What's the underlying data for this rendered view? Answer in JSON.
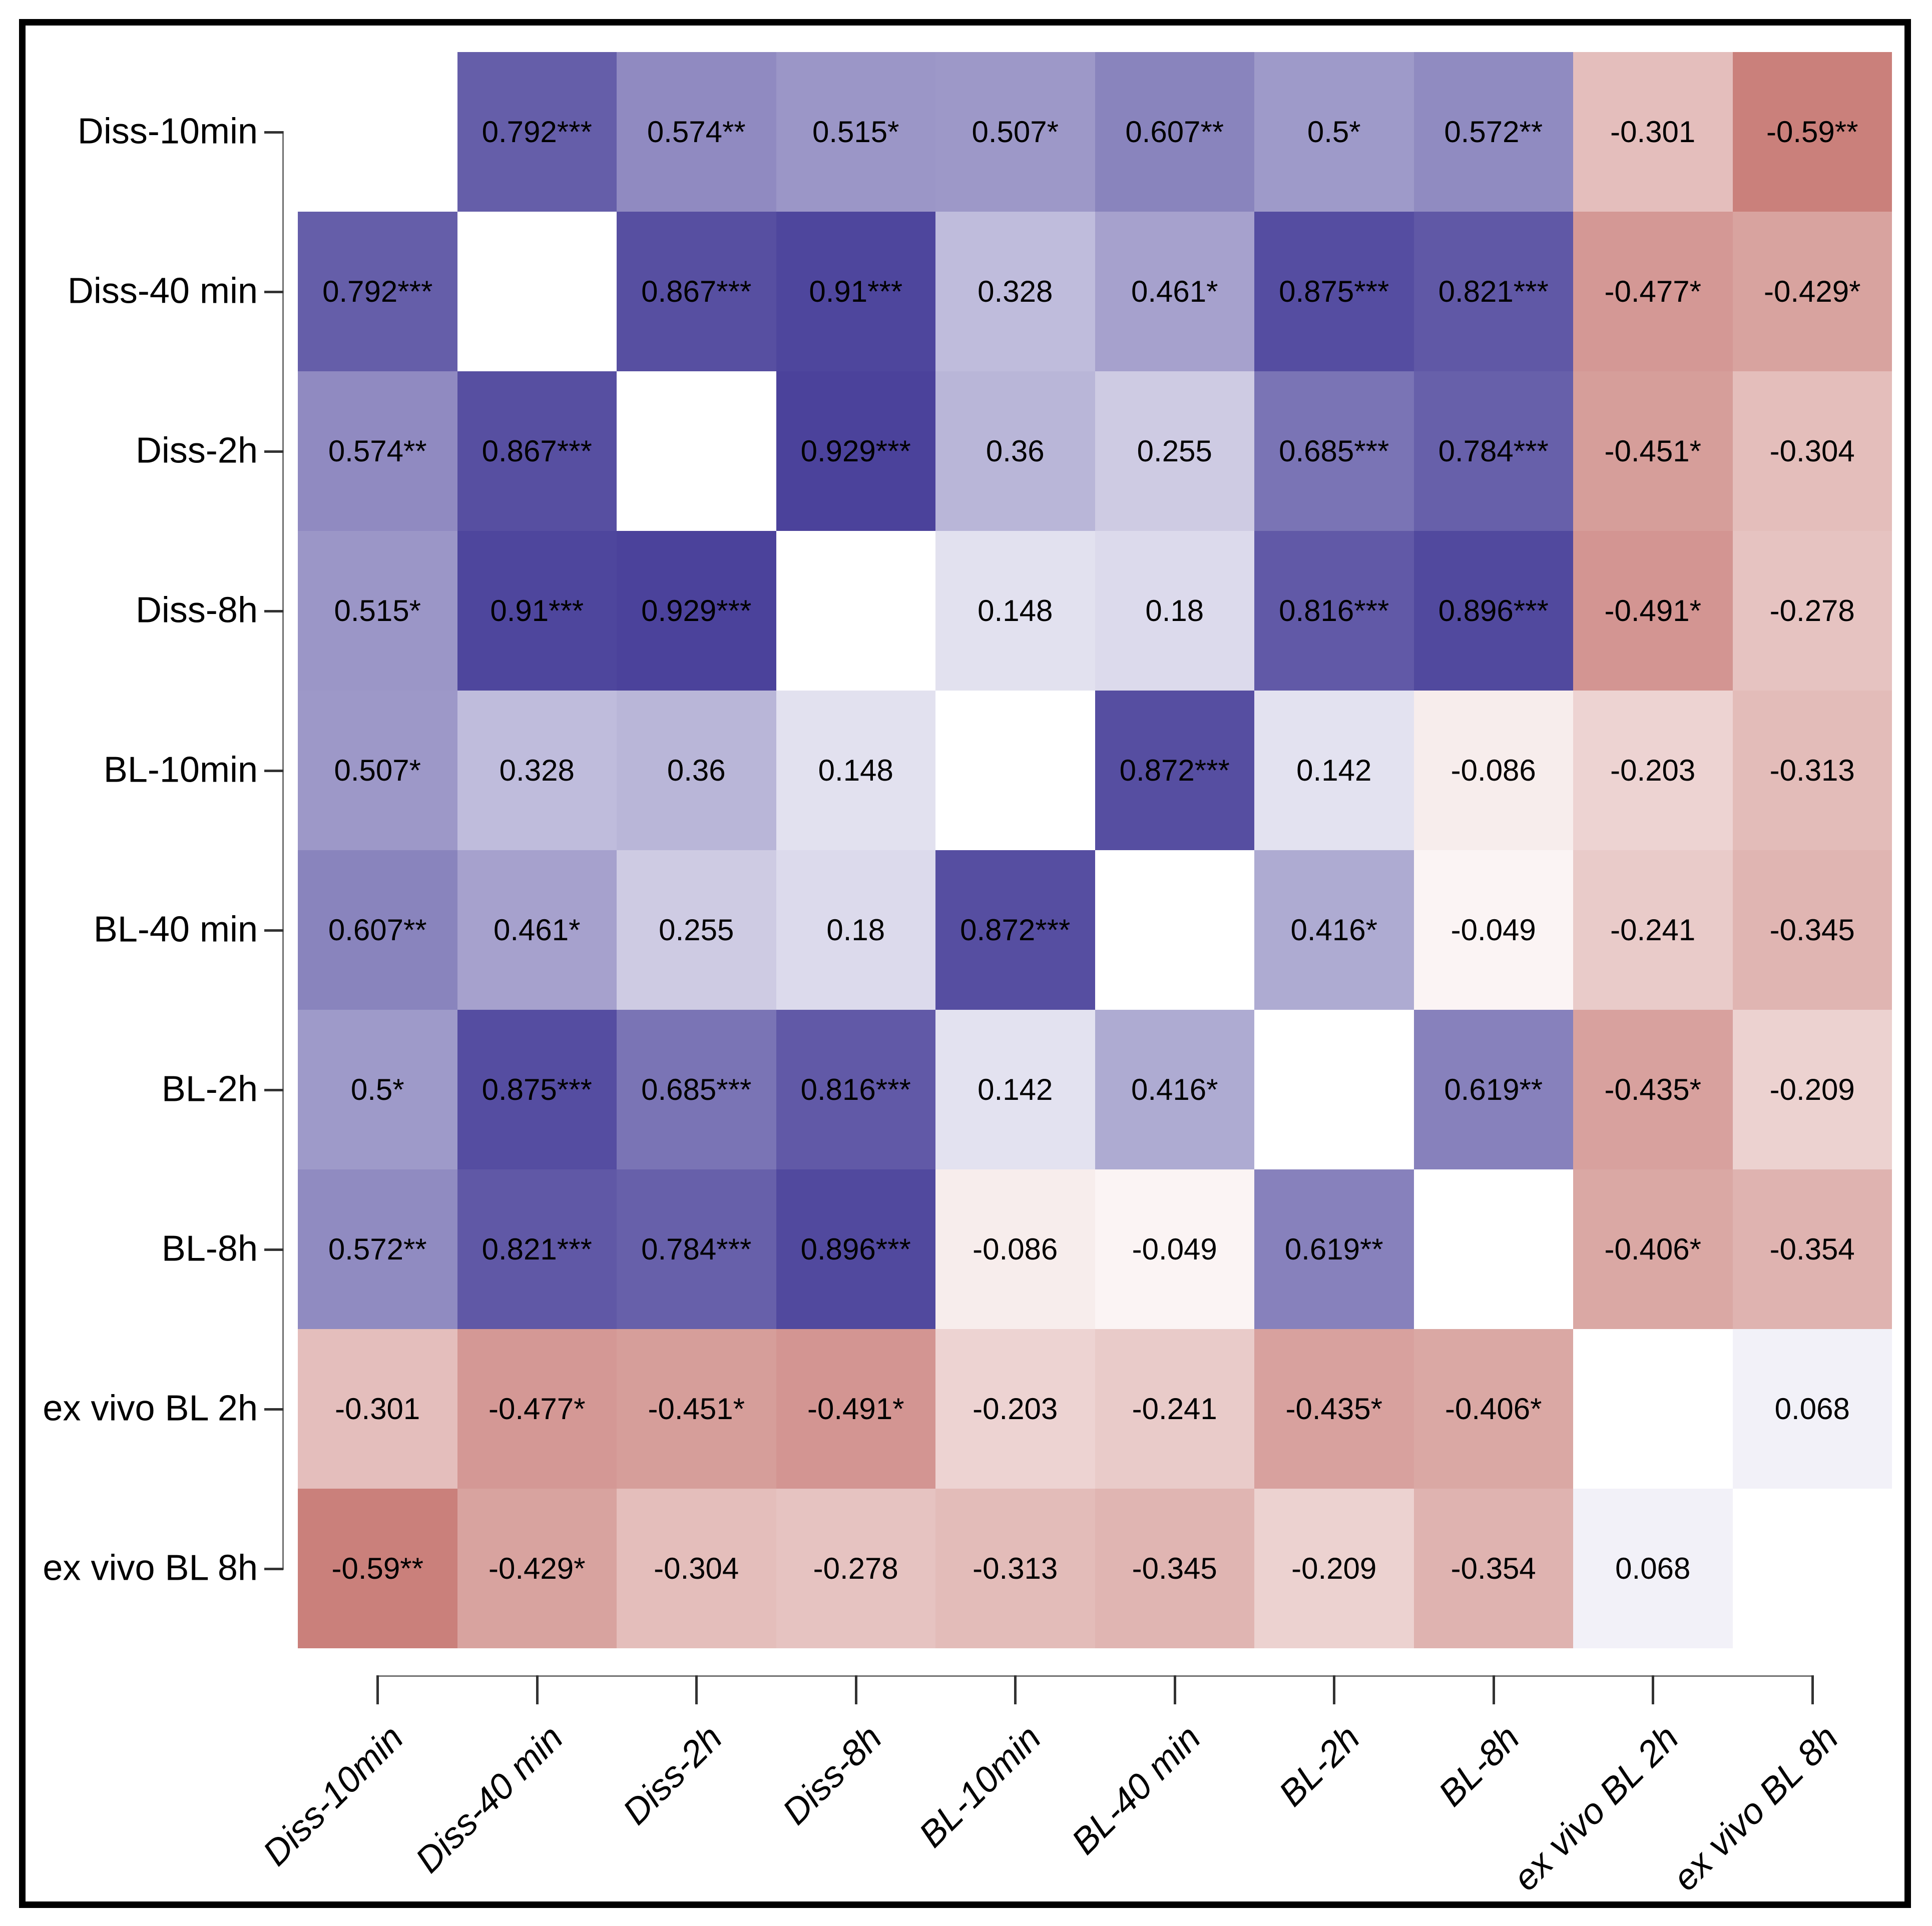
{
  "figure": {
    "background": "#ffffff",
    "frame_color": "#000000",
    "axis_line_color": "#6e6e6e",
    "tick_color": "#333333",
    "cell_text_color": "#000000"
  },
  "chart_data": {
    "type": "heatmap",
    "title": "",
    "xlabel": "",
    "ylabel": "",
    "grid": false,
    "legend": "none",
    "color_scale": {
      "negative_end": "#A52820",
      "zero": "#ffffff",
      "positive_end": "#3D3493",
      "domain": [
        -1,
        1
      ]
    },
    "categories": [
      "Diss-10min",
      "Diss-40 min",
      "Diss-2h",
      "Diss-8h",
      "BL-10min",
      "BL-40 min",
      "BL-2h",
      "BL-8h",
      "ex vivo BL 2h",
      "ex vivo BL 8h"
    ],
    "matrix_values": [
      [
        null,
        0.792,
        0.574,
        0.515,
        0.507,
        0.607,
        0.5,
        0.572,
        -0.301,
        -0.59
      ],
      [
        0.792,
        null,
        0.867,
        0.91,
        0.328,
        0.461,
        0.875,
        0.821,
        -0.477,
        -0.429
      ],
      [
        0.574,
        0.867,
        null,
        0.929,
        0.36,
        0.255,
        0.685,
        0.784,
        -0.451,
        -0.304
      ],
      [
        0.515,
        0.91,
        0.929,
        null,
        0.148,
        0.18,
        0.816,
        0.896,
        -0.491,
        -0.278
      ],
      [
        0.507,
        0.328,
        0.36,
        0.148,
        null,
        0.872,
        0.142,
        -0.086,
        -0.203,
        -0.313
      ],
      [
        0.607,
        0.461,
        0.255,
        0.18,
        0.872,
        null,
        0.416,
        -0.049,
        -0.241,
        -0.345
      ],
      [
        0.5,
        0.875,
        0.685,
        0.816,
        0.142,
        0.416,
        null,
        0.619,
        -0.435,
        -0.209
      ],
      [
        0.572,
        0.821,
        0.784,
        0.896,
        -0.086,
        -0.049,
        0.619,
        null,
        -0.406,
        -0.354
      ],
      [
        -0.301,
        -0.477,
        -0.451,
        -0.491,
        -0.203,
        -0.241,
        -0.435,
        -0.406,
        null,
        0.068
      ],
      [
        -0.59,
        -0.429,
        -0.304,
        -0.278,
        -0.313,
        -0.345,
        -0.209,
        -0.354,
        0.068,
        null
      ]
    ],
    "matrix_display": [
      [
        null,
        "0.792***",
        "0.574**",
        "0.515*",
        "0.507*",
        "0.607**",
        "0.5*",
        "0.572**",
        "-0.301",
        "-0.59**"
      ],
      [
        "0.792***",
        null,
        "0.867***",
        "0.91***",
        "0.328",
        "0.461*",
        "0.875***",
        "0.821***",
        "-0.477*",
        "-0.429*"
      ],
      [
        "0.574**",
        "0.867***",
        null,
        "0.929***",
        "0.36",
        "0.255",
        "0.685***",
        "0.784***",
        "-0.451*",
        "-0.304"
      ],
      [
        "0.515*",
        "0.91***",
        "0.929***",
        null,
        "0.148",
        "0.18",
        "0.816***",
        "0.896***",
        "-0.491*",
        "-0.278"
      ],
      [
        "0.507*",
        "0.328",
        "0.36",
        "0.148",
        null,
        "0.872***",
        "0.142",
        "-0.086",
        "-0.203",
        "-0.313"
      ],
      [
        "0.607**",
        "0.461*",
        "0.255",
        "0.18",
        "0.872***",
        null,
        "0.416*",
        "-0.049",
        "-0.241",
        "-0.345"
      ],
      [
        "0.5*",
        "0.875***",
        "0.685***",
        "0.816***",
        "0.142",
        "0.416*",
        null,
        "0.619**",
        "-0.435*",
        "-0.209"
      ],
      [
        "0.572**",
        "0.821***",
        "0.784***",
        "0.896***",
        "-0.086",
        "-0.049",
        "0.619**",
        null,
        "-0.406*",
        "-0.354"
      ],
      [
        "-0.301",
        "-0.477*",
        "-0.451*",
        "-0.491*",
        "-0.203",
        "-0.241",
        "-0.435*",
        "-0.406*",
        null,
        "0.068"
      ],
      [
        "-0.59**",
        "-0.429*",
        "-0.304",
        "-0.278",
        "-0.313",
        "-0.345",
        "-0.209",
        "-0.354",
        "0.068",
        null
      ]
    ]
  }
}
